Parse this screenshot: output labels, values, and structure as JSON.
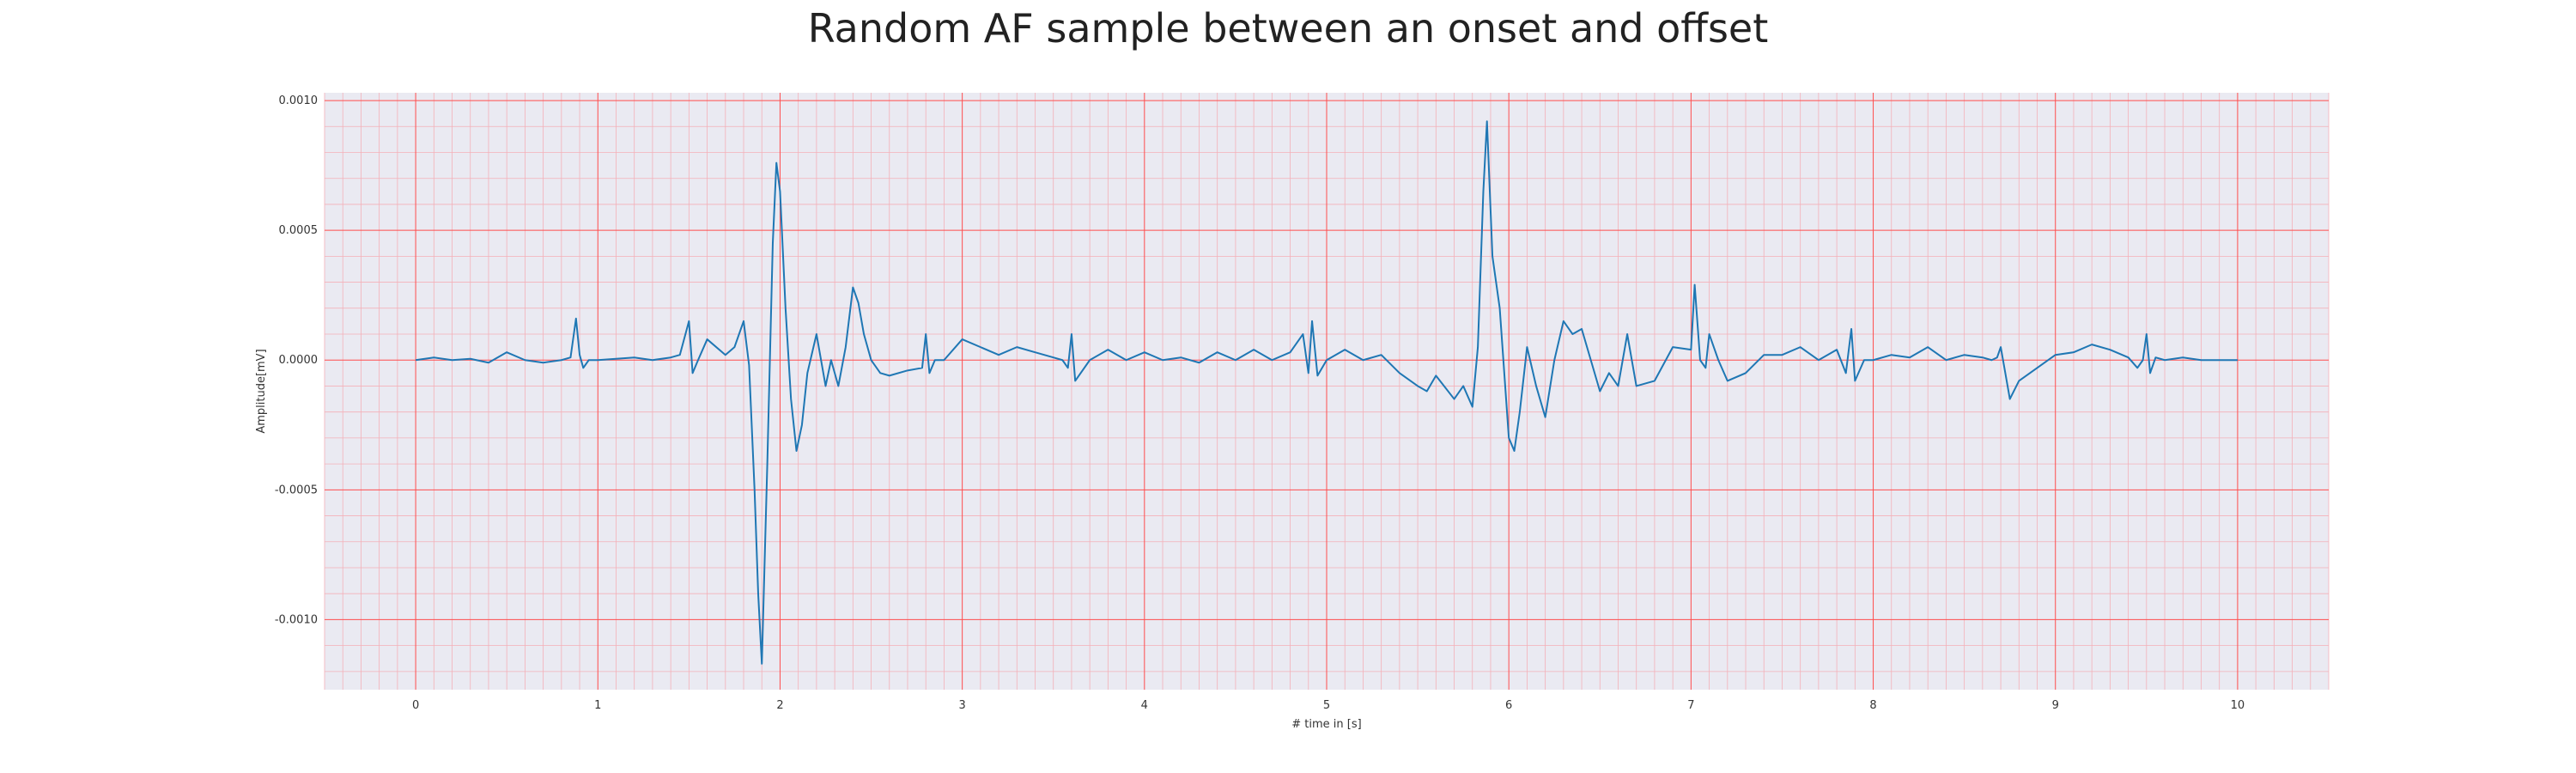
{
  "chart_data": {
    "type": "line",
    "title": "Random AF sample between an onset and offset",
    "xlabel": "# time in [s]",
    "ylabel": "Amplitude[mV]",
    "xlim": [
      -0.5,
      10.5
    ],
    "ylim": [
      -0.00127,
      0.00103
    ],
    "x_ticks": [
      0,
      1,
      2,
      3,
      4,
      5,
      6,
      7,
      8,
      9,
      10
    ],
    "y_ticks": [
      -0.001,
      -0.0005,
      0.0,
      0.0005,
      0.001
    ],
    "y_tick_labels": [
      "-0.0010",
      "-0.0005",
      "0.0000",
      "0.0005",
      "0.0010"
    ],
    "grid": true,
    "minor_grid": true,
    "colors": {
      "line": "#1f77b4",
      "background": "#eaeaf2",
      "major_grid": "#ff4d4d",
      "minor_grid": "#f4b0b8"
    },
    "series": [
      {
        "name": "",
        "x": [
          0.0,
          0.1,
          0.2,
          0.3,
          0.4,
          0.5,
          0.6,
          0.7,
          0.8,
          0.85,
          0.88,
          0.9,
          0.92,
          0.95,
          1.0,
          1.1,
          1.2,
          1.3,
          1.4,
          1.45,
          1.5,
          1.52,
          1.55,
          1.6,
          1.7,
          1.75,
          1.8,
          1.83,
          1.86,
          1.88,
          1.9,
          1.93,
          1.96,
          1.98,
          2.0,
          2.03,
          2.06,
          2.09,
          2.12,
          2.15,
          2.2,
          2.25,
          2.28,
          2.32,
          2.36,
          2.4,
          2.43,
          2.46,
          2.5,
          2.55,
          2.6,
          2.7,
          2.78,
          2.8,
          2.82,
          2.85,
          2.9,
          3.0,
          3.1,
          3.2,
          3.3,
          3.4,
          3.5,
          3.55,
          3.58,
          3.6,
          3.62,
          3.7,
          3.8,
          3.9,
          4.0,
          4.1,
          4.2,
          4.3,
          4.4,
          4.5,
          4.6,
          4.7,
          4.8,
          4.87,
          4.9,
          4.92,
          4.95,
          5.0,
          5.1,
          5.2,
          5.3,
          5.4,
          5.5,
          5.55,
          5.6,
          5.7,
          5.75,
          5.8,
          5.83,
          5.86,
          5.88,
          5.91,
          5.95,
          6.0,
          6.03,
          6.06,
          6.1,
          6.15,
          6.2,
          6.25,
          6.3,
          6.35,
          6.4,
          6.45,
          6.5,
          6.55,
          6.6,
          6.65,
          6.7,
          6.8,
          6.9,
          7.0,
          7.02,
          7.05,
          7.08,
          7.1,
          7.15,
          7.2,
          7.3,
          7.4,
          7.5,
          7.6,
          7.7,
          7.8,
          7.85,
          7.88,
          7.9,
          7.95,
          8.0,
          8.1,
          8.2,
          8.3,
          8.4,
          8.5,
          8.6,
          8.65,
          8.68,
          8.7,
          8.75,
          8.8,
          8.9,
          9.0,
          9.1,
          9.2,
          9.3,
          9.4,
          9.45,
          9.48,
          9.5,
          9.52,
          9.55,
          9.6,
          9.7,
          9.8,
          9.9,
          10.0
        ],
        "y": [
          0.0,
          1e-05,
          0.0,
          5e-06,
          -1e-05,
          3e-05,
          0.0,
          -1e-05,
          0.0,
          1e-05,
          0.00016,
          2e-05,
          -3e-05,
          0.0,
          0.0,
          5e-06,
          1e-05,
          0.0,
          1e-05,
          2e-05,
          0.00015,
          -5e-05,
          0.0,
          8e-05,
          2e-05,
          5e-05,
          0.00015,
          -2e-05,
          -0.0005,
          -0.0009,
          -0.00117,
          -0.0004,
          0.00045,
          0.00076,
          0.00065,
          0.0002,
          -0.00015,
          -0.00035,
          -0.00025,
          -5e-05,
          0.0001,
          -0.0001,
          0.0,
          -0.0001,
          5e-05,
          0.00028,
          0.00022,
          0.0001,
          0.0,
          -5e-05,
          -6e-05,
          -4e-05,
          -3e-05,
          0.0001,
          -5e-05,
          0.0,
          0.0,
          8e-05,
          5e-05,
          2e-05,
          5e-05,
          3e-05,
          1e-05,
          0.0,
          -3e-05,
          0.0001,
          -8e-05,
          0.0,
          4e-05,
          0.0,
          3e-05,
          0.0,
          1e-05,
          -1e-05,
          3e-05,
          0.0,
          4e-05,
          0.0,
          3e-05,
          0.0001,
          -5e-05,
          0.00015,
          -6e-05,
          0.0,
          4e-05,
          0.0,
          2e-05,
          -5e-05,
          -0.0001,
          -0.00012,
          -6e-05,
          -0.00015,
          -0.0001,
          -0.00018,
          5e-05,
          0.00065,
          0.00092,
          0.0004,
          0.0002,
          -0.0003,
          -0.00035,
          -0.0002,
          5e-05,
          -0.0001,
          -0.00022,
          0.0,
          0.00015,
          0.0001,
          0.00012,
          0.0,
          -0.00012,
          -5e-05,
          -0.0001,
          0.0001,
          -0.0001,
          -8e-05,
          5e-05,
          4e-05,
          0.00029,
          0.0,
          -3e-05,
          0.0001,
          0.0,
          -8e-05,
          -5e-05,
          2e-05,
          2e-05,
          5e-05,
          0.0,
          4e-05,
          -5e-05,
          0.00012,
          -8e-05,
          0.0,
          0.0,
          2e-05,
          1e-05,
          5e-05,
          0.0,
          2e-05,
          1e-05,
          0.0,
          1e-05,
          5e-05,
          -0.00015,
          -8e-05,
          -3e-05,
          2e-05,
          3e-05,
          6e-05,
          4e-05,
          1e-05,
          -3e-05,
          0.0,
          0.0001,
          -5e-05,
          1e-05,
          0.0,
          1e-05,
          0.0,
          0.0,
          0.0
        ]
      }
    ]
  }
}
